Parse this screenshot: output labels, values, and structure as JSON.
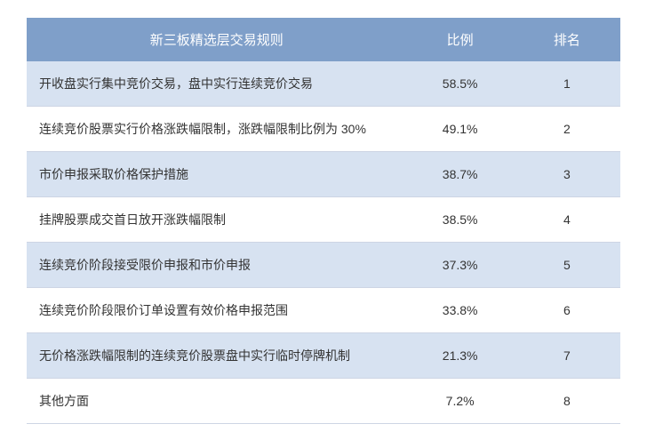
{
  "table": {
    "type": "table",
    "background_color": "#ffffff",
    "header_bg": "#7f9fc9",
    "header_text_color": "#ffffff",
    "row_odd_bg": "#d7e2f1",
    "row_even_bg": "#ffffff",
    "border_color": "#cdd5e4",
    "text_color": "#333333",
    "header_fontsize": 15,
    "cell_fontsize": 14,
    "columns": [
      {
        "label": "新三板精选层交易规则",
        "width": "64%",
        "align": "left"
      },
      {
        "label": "比例",
        "width": "18%",
        "align": "center"
      },
      {
        "label": "排名",
        "width": "18%",
        "align": "center"
      }
    ],
    "rows": [
      {
        "rule": "开收盘实行集中竞价交易，盘中实行连续竞价交易",
        "ratio": "58.5%",
        "rank": "1"
      },
      {
        "rule": "连续竞价股票实行价格涨跌幅限制，涨跌幅限制比例为 30%",
        "ratio": "49.1%",
        "rank": "2"
      },
      {
        "rule": "市价申报采取价格保护措施",
        "ratio": "38.7%",
        "rank": "3"
      },
      {
        "rule": "挂牌股票成交首日放开涨跌幅限制",
        "ratio": "38.5%",
        "rank": "4"
      },
      {
        "rule": "连续竞价阶段接受限价申报和市价申报",
        "ratio": "37.3%",
        "rank": "5"
      },
      {
        "rule": "连续竞价阶段限价订单设置有效价格申报范围",
        "ratio": "33.8%",
        "rank": "6"
      },
      {
        "rule": "无价格涨跌幅限制的连续竞价股票盘中实行临时停牌机制",
        "ratio": "21.3%",
        "rank": "7"
      },
      {
        "rule": "其他方面",
        "ratio": "7.2%",
        "rank": "8"
      }
    ]
  }
}
